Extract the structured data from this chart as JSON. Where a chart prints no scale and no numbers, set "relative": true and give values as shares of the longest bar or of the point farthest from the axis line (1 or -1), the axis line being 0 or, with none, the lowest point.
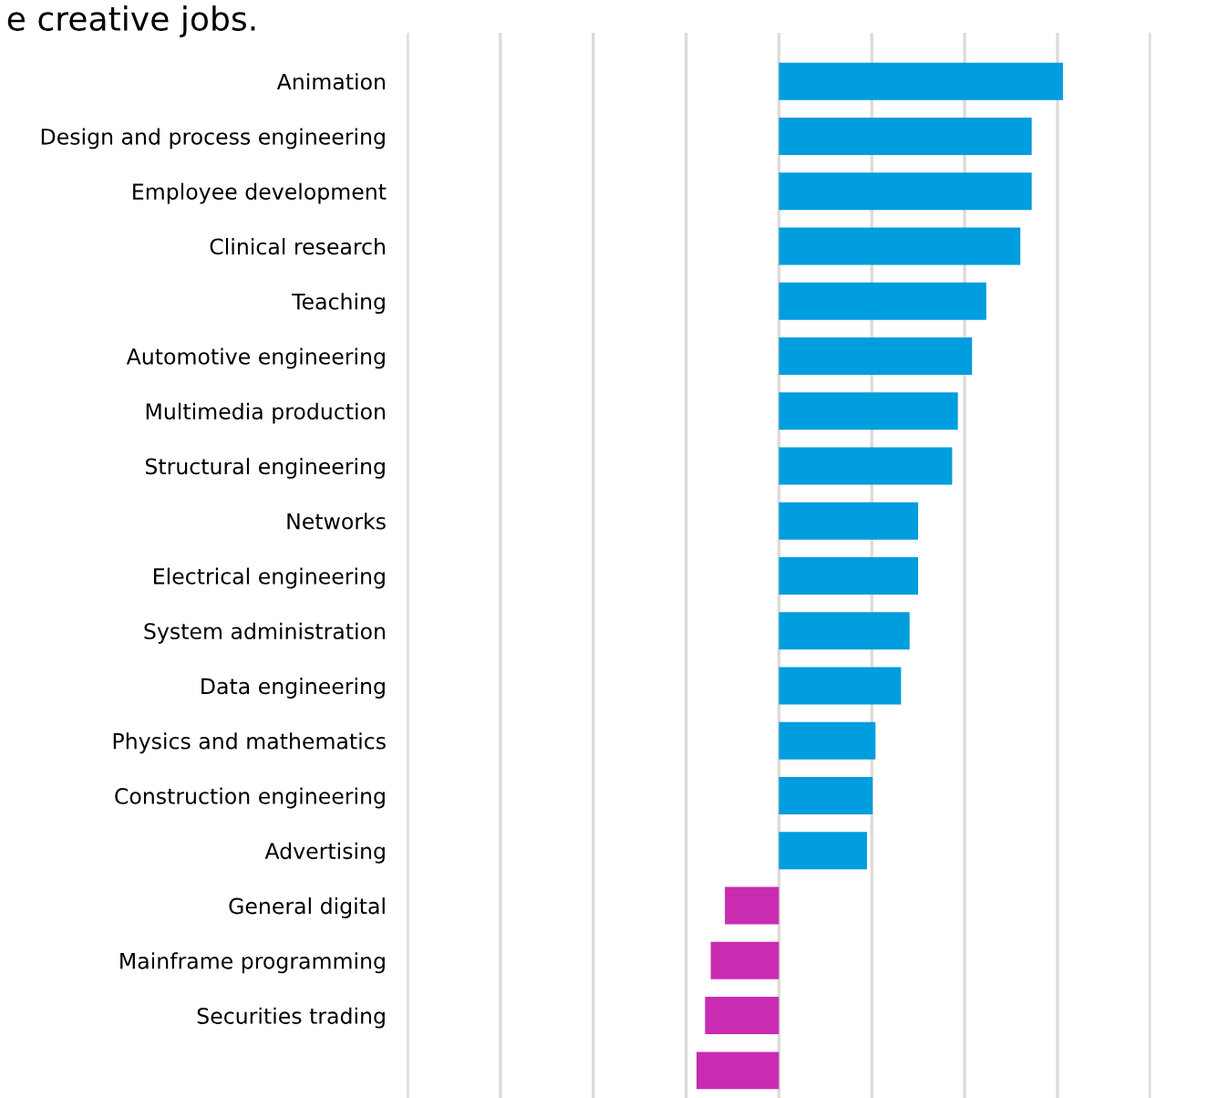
{
  "chart_data": {
    "type": "bar",
    "orientation": "horizontal",
    "relative": true,
    "title": "e creative jobs.",
    "categories": [
      "Animation",
      "Design and process engineering",
      "Employee development",
      "Clinical research",
      "Teaching",
      "Automotive engineering",
      "Multimedia production",
      "Structural engineering",
      "Networks",
      "Electrical engineering",
      "System administration",
      "Data engineering",
      "Physics and mathematics",
      "Construction engineering",
      "Advertising",
      "General digital",
      "Mainframe programming",
      "Securities trading",
      null
    ],
    "values": [
      1,
      0.89,
      0.89,
      0.85,
      0.73,
      0.68,
      0.63,
      0.61,
      0.49,
      0.49,
      0.46,
      0.43,
      0.34,
      0.33,
      0.31,
      -0.19,
      -0.24,
      -0.26,
      -0.29
    ],
    "colors": [
      "#009ddf",
      "#009ddf",
      "#009ddf",
      "#009ddf",
      "#009ddf",
      "#009ddf",
      "#009ddf",
      "#009ddf",
      "#009ddf",
      "#009ddf",
      "#009ddf",
      "#009ddf",
      "#009ddf",
      "#009ddf",
      "#009ddf",
      "#c92bb1",
      "#c92bb1",
      "#c92bb1",
      "#c92bb1"
    ],
    "grid": "x",
    "legend": false
  }
}
